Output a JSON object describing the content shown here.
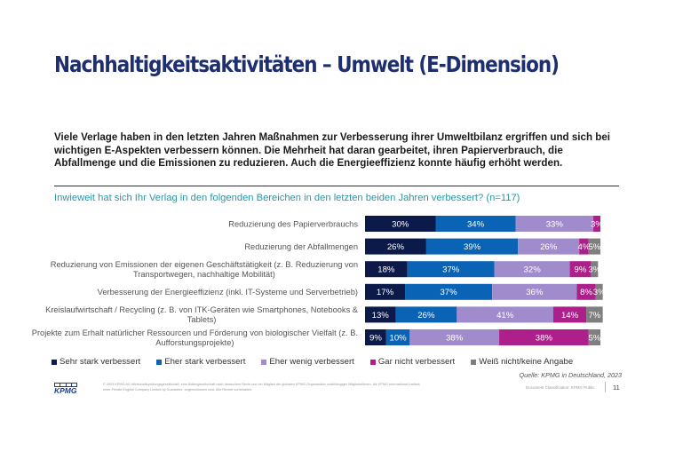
{
  "header": {
    "title": "Nachhaltigkeitsaktivitäten – Umwelt (E-Dimension)"
  },
  "intro_text": "Viele Verlage haben in den letzten Jahren Maßnahmen zur Verbesserung ihrer Umweltbilanz ergriffen und sich bei wichtigen E-Aspekten verbessern können. Die Mehrheit hat daran gearbeitet, ihren Papierverbrauch, die Abfallmenge und die Emissionen zu reduzieren. Auch die Energieeffizienz konnte häufig erhöht werden.",
  "chart_data": {
    "type": "bar",
    "orientation": "horizontal",
    "stacked": true,
    "title": "Inwieweit hat sich Ihr Verlag in den folgenden Bereichen in den letzten beiden Jahren verbessert? (n=117)",
    "xlabel": "",
    "ylabel": "",
    "unit": "%",
    "categories": [
      "Reduzierung des Papierverbrauchs",
      "Reduzierung der Abfallmengen",
      "Reduzierung von Emissionen der eigenen Geschäftstätigkeit (z. B. Reduzierung von Transportwegen, nachhaltige Mobilität)",
      "Verbesserung der Energieeffizienz (inkl. IT-Systeme und Serverbetrieb)",
      "Kreislaufwirtschaft / Recycling (z. B. von ITK-Geräten wie Smartphones, Notebooks & Tablets)",
      "Projekte zum Erhalt natürlicher Ressourcen und Förderung von biologischer Vielfalt (z. B. Aufforstungsprojekte)"
    ],
    "category_lines": [
      [
        "Reduzierung des Papierverbrauchs"
      ],
      [
        "Reduzierung der Abfallmengen"
      ],
      [
        "Reduzierung von Emissionen der eigenen Geschäftstätigkeit (z. B. Reduzierung von",
        "Transportwegen, nachhaltige Mobilität)"
      ],
      [
        "Verbesserung der Energieeffizienz (inkl. IT-Systeme und Serverbetrieb)"
      ],
      [
        "Kreislaufwirtschaft / Recycling (z. B. von ITK-Geräten wie Smartphones, Notebooks &",
        "Tablets)"
      ],
      [
        "Projekte zum Erhalt natürlicher Ressourcen und Förderung von biologischer Vielfalt (z. B.",
        "Aufforstungsprojekte)"
      ]
    ],
    "series": [
      {
        "name": "Sehr stark verbessert",
        "color": "#0c1a4a",
        "values": [
          30,
          26,
          18,
          17,
          13,
          9
        ]
      },
      {
        "name": "Eher stark verbessert",
        "color": "#0a63b4",
        "values": [
          34,
          39,
          37,
          37,
          26,
          10
        ]
      },
      {
        "name": "Eher wenig verbessert",
        "color": "#a08ccc",
        "values": [
          33,
          26,
          32,
          36,
          41,
          38
        ]
      },
      {
        "name": "Gar nicht verbessert",
        "color": "#ad1f8a",
        "values": [
          3,
          4,
          9,
          8,
          14,
          38
        ]
      },
      {
        "name": "Weiß nicht/keine Angabe",
        "color": "#7f7f7f",
        "values": [
          0,
          5,
          3,
          3,
          7,
          5
        ]
      }
    ],
    "xlim": [
      0,
      100
    ],
    "grid": false,
    "legend_position": "bottom-left",
    "source": "Quelle: KPMG in Deutschland, 2023"
  },
  "footer": {
    "logo_text": "KPMG",
    "copyright": "© 2023 KPMG AG Wirtschaftsprüfungsgesellschaft, eine Aktiengesellschaft nach deutschem Recht und ein Mitglied der globalen KPMG-Organisation unabhängiger Mitgliedsfirmen, die KPMG International Limited, einer Private English Company Limited by Guarantee, angeschlossen sind. Alle Rechte vorbehalten.",
    "classification": "Document Classification: KPMG Public",
    "page_number": "11"
  }
}
